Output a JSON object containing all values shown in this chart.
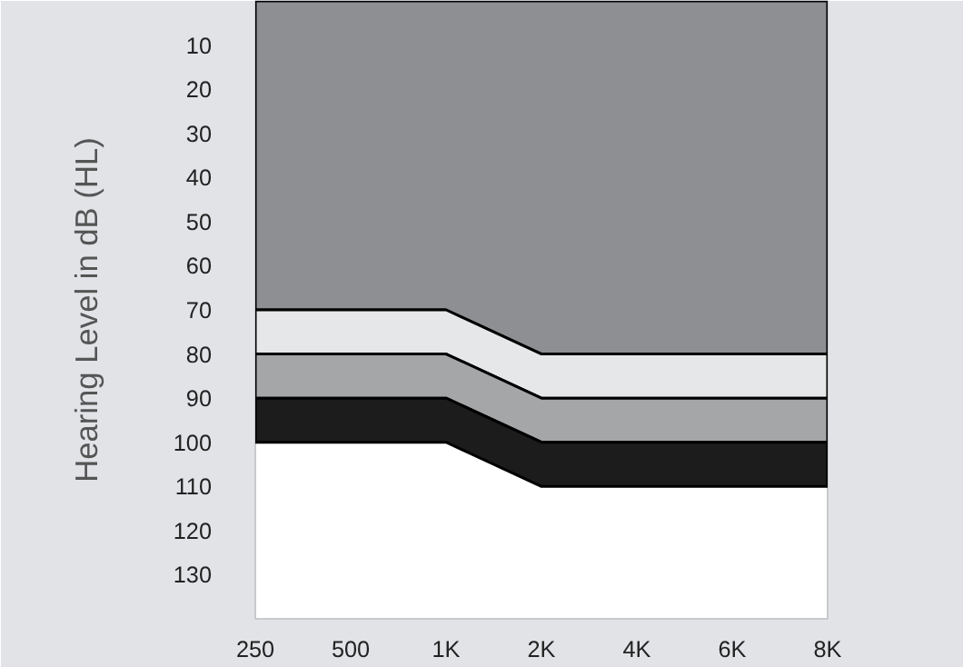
{
  "chart_data": {
    "type": "area",
    "stacked": true,
    "ylabel": "Hearing Level in dB (HL)",
    "categories": [
      "250",
      "500",
      "1K",
      "2K",
      "4K",
      "6K",
      "8K"
    ],
    "ylim": [
      140,
      0
    ],
    "yticks": [
      10,
      20,
      30,
      40,
      50,
      60,
      70,
      80,
      90,
      100,
      110,
      120,
      130
    ],
    "grid": false,
    "series": [
      {
        "color": "#8e8f92",
        "values": [
          70,
          70,
          70,
          80,
          80,
          80,
          80
        ]
      },
      {
        "color": "#e6e7e8",
        "values": [
          10,
          10,
          10,
          10,
          10,
          10,
          10
        ]
      },
      {
        "color": "#a5a6a8",
        "values": [
          10,
          10,
          10,
          10,
          10,
          10,
          10
        ]
      },
      {
        "color": "#1c1c1c",
        "values": [
          10,
          10,
          10,
          10,
          10,
          10,
          10
        ]
      }
    ]
  }
}
